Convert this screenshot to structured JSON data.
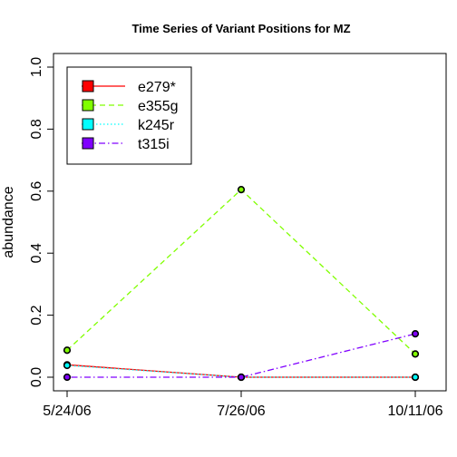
{
  "chart_data": {
    "type": "line",
    "title": "Time Series of Variant Positions for MZ",
    "xlabel": "",
    "ylabel": "abundance",
    "categories": [
      "5/24/06",
      "7/26/06",
      "10/11/06"
    ],
    "ylim": [
      0.0,
      1.0
    ],
    "yticks": [
      "0.0",
      "0.2",
      "0.4",
      "0.6",
      "0.8",
      "1.0"
    ],
    "grid": false,
    "legend_position": "top-left",
    "series": [
      {
        "name": "e279*",
        "values": [
          0.04,
          0.0,
          0.0
        ],
        "color": "#ff0000",
        "dash": "solid"
      },
      {
        "name": "e355g",
        "values": [
          0.087,
          0.605,
          0.075
        ],
        "color": "#80ff00",
        "dash": "dashed"
      },
      {
        "name": "k245r",
        "values": [
          0.038,
          0.0,
          0.0
        ],
        "color": "#00ffff",
        "dash": "dotted"
      },
      {
        "name": "t315i",
        "values": [
          0.0,
          0.0,
          0.14
        ],
        "color": "#8000ff",
        "dash": "dotdash"
      }
    ]
  }
}
